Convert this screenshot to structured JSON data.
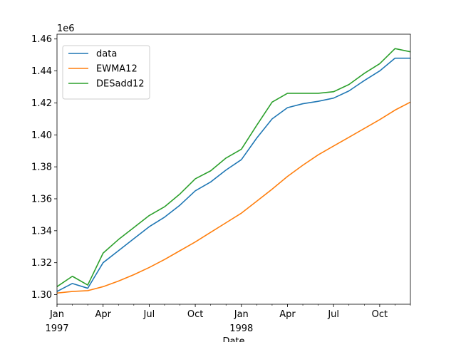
{
  "chart_data": {
    "type": "line",
    "title": "",
    "xlabel": "Date",
    "ylabel": "",
    "y_offset_label": "1e6",
    "ylim": [
      1294000,
      1463000
    ],
    "xlim": [
      "1997-01",
      "1998-12"
    ],
    "x": [
      "1997-01",
      "1997-02",
      "1997-03",
      "1997-04",
      "1997-05",
      "1997-06",
      "1997-07",
      "1997-08",
      "1997-09",
      "1997-10",
      "1997-11",
      "1997-12",
      "1998-01",
      "1998-02",
      "1998-03",
      "1998-04",
      "1998-05",
      "1998-06",
      "1998-07",
      "1998-08",
      "1998-09",
      "1998-10",
      "1998-11",
      "1998-12"
    ],
    "x_major_ticks": [
      {
        "x": "1997-01",
        "label": "Jan",
        "sublabel": "1997"
      },
      {
        "x": "1997-04",
        "label": "Apr",
        "sublabel": ""
      },
      {
        "x": "1997-07",
        "label": "Jul",
        "sublabel": ""
      },
      {
        "x": "1997-10",
        "label": "Oct",
        "sublabel": ""
      },
      {
        "x": "1998-01",
        "label": "Jan",
        "sublabel": "1998"
      },
      {
        "x": "1998-04",
        "label": "Apr",
        "sublabel": ""
      },
      {
        "x": "1998-07",
        "label": "Jul",
        "sublabel": ""
      },
      {
        "x": "1998-10",
        "label": "Oct",
        "sublabel": ""
      }
    ],
    "y_ticks": [
      1300000,
      1320000,
      1340000,
      1360000,
      1380000,
      1400000,
      1420000,
      1440000,
      1460000
    ],
    "y_tick_labels": [
      "1.30",
      "1.32",
      "1.34",
      "1.36",
      "1.38",
      "1.40",
      "1.42",
      "1.44",
      "1.46"
    ],
    "grid": false,
    "legend_position": "top-left",
    "series": [
      {
        "name": "data",
        "color": "#1f77b4",
        "values": [
          1302000,
          1307000,
          1304000,
          1320000,
          1327500,
          1335000,
          1342500,
          1348500,
          1356000,
          1365000,
          1370500,
          1378000,
          1384500,
          1398000,
          1410000,
          1417000,
          1419500,
          1421000,
          1423000,
          1427500,
          1434000,
          1440000,
          1448000,
          1448000
        ]
      },
      {
        "name": "EWMA12",
        "color": "#ff7f0e",
        "values": [
          1301000,
          1302000,
          1302500,
          1305000,
          1308500,
          1312500,
          1317000,
          1322000,
          1327500,
          1333000,
          1339000,
          1345000,
          1351000,
          1358500,
          1366000,
          1374000,
          1381000,
          1387500,
          1393000,
          1398500,
          1404000,
          1409500,
          1415500,
          1420500
        ]
      },
      {
        "name": "DESadd12",
        "color": "#2ca02c",
        "values": [
          1305000,
          1311500,
          1306000,
          1326000,
          1334500,
          1342000,
          1349500,
          1355000,
          1363000,
          1372500,
          1377500,
          1385500,
          1391000,
          1406000,
          1420500,
          1426000,
          1426000,
          1426000,
          1427000,
          1431500,
          1438500,
          1444500,
          1454000,
          1452000
        ]
      }
    ]
  }
}
